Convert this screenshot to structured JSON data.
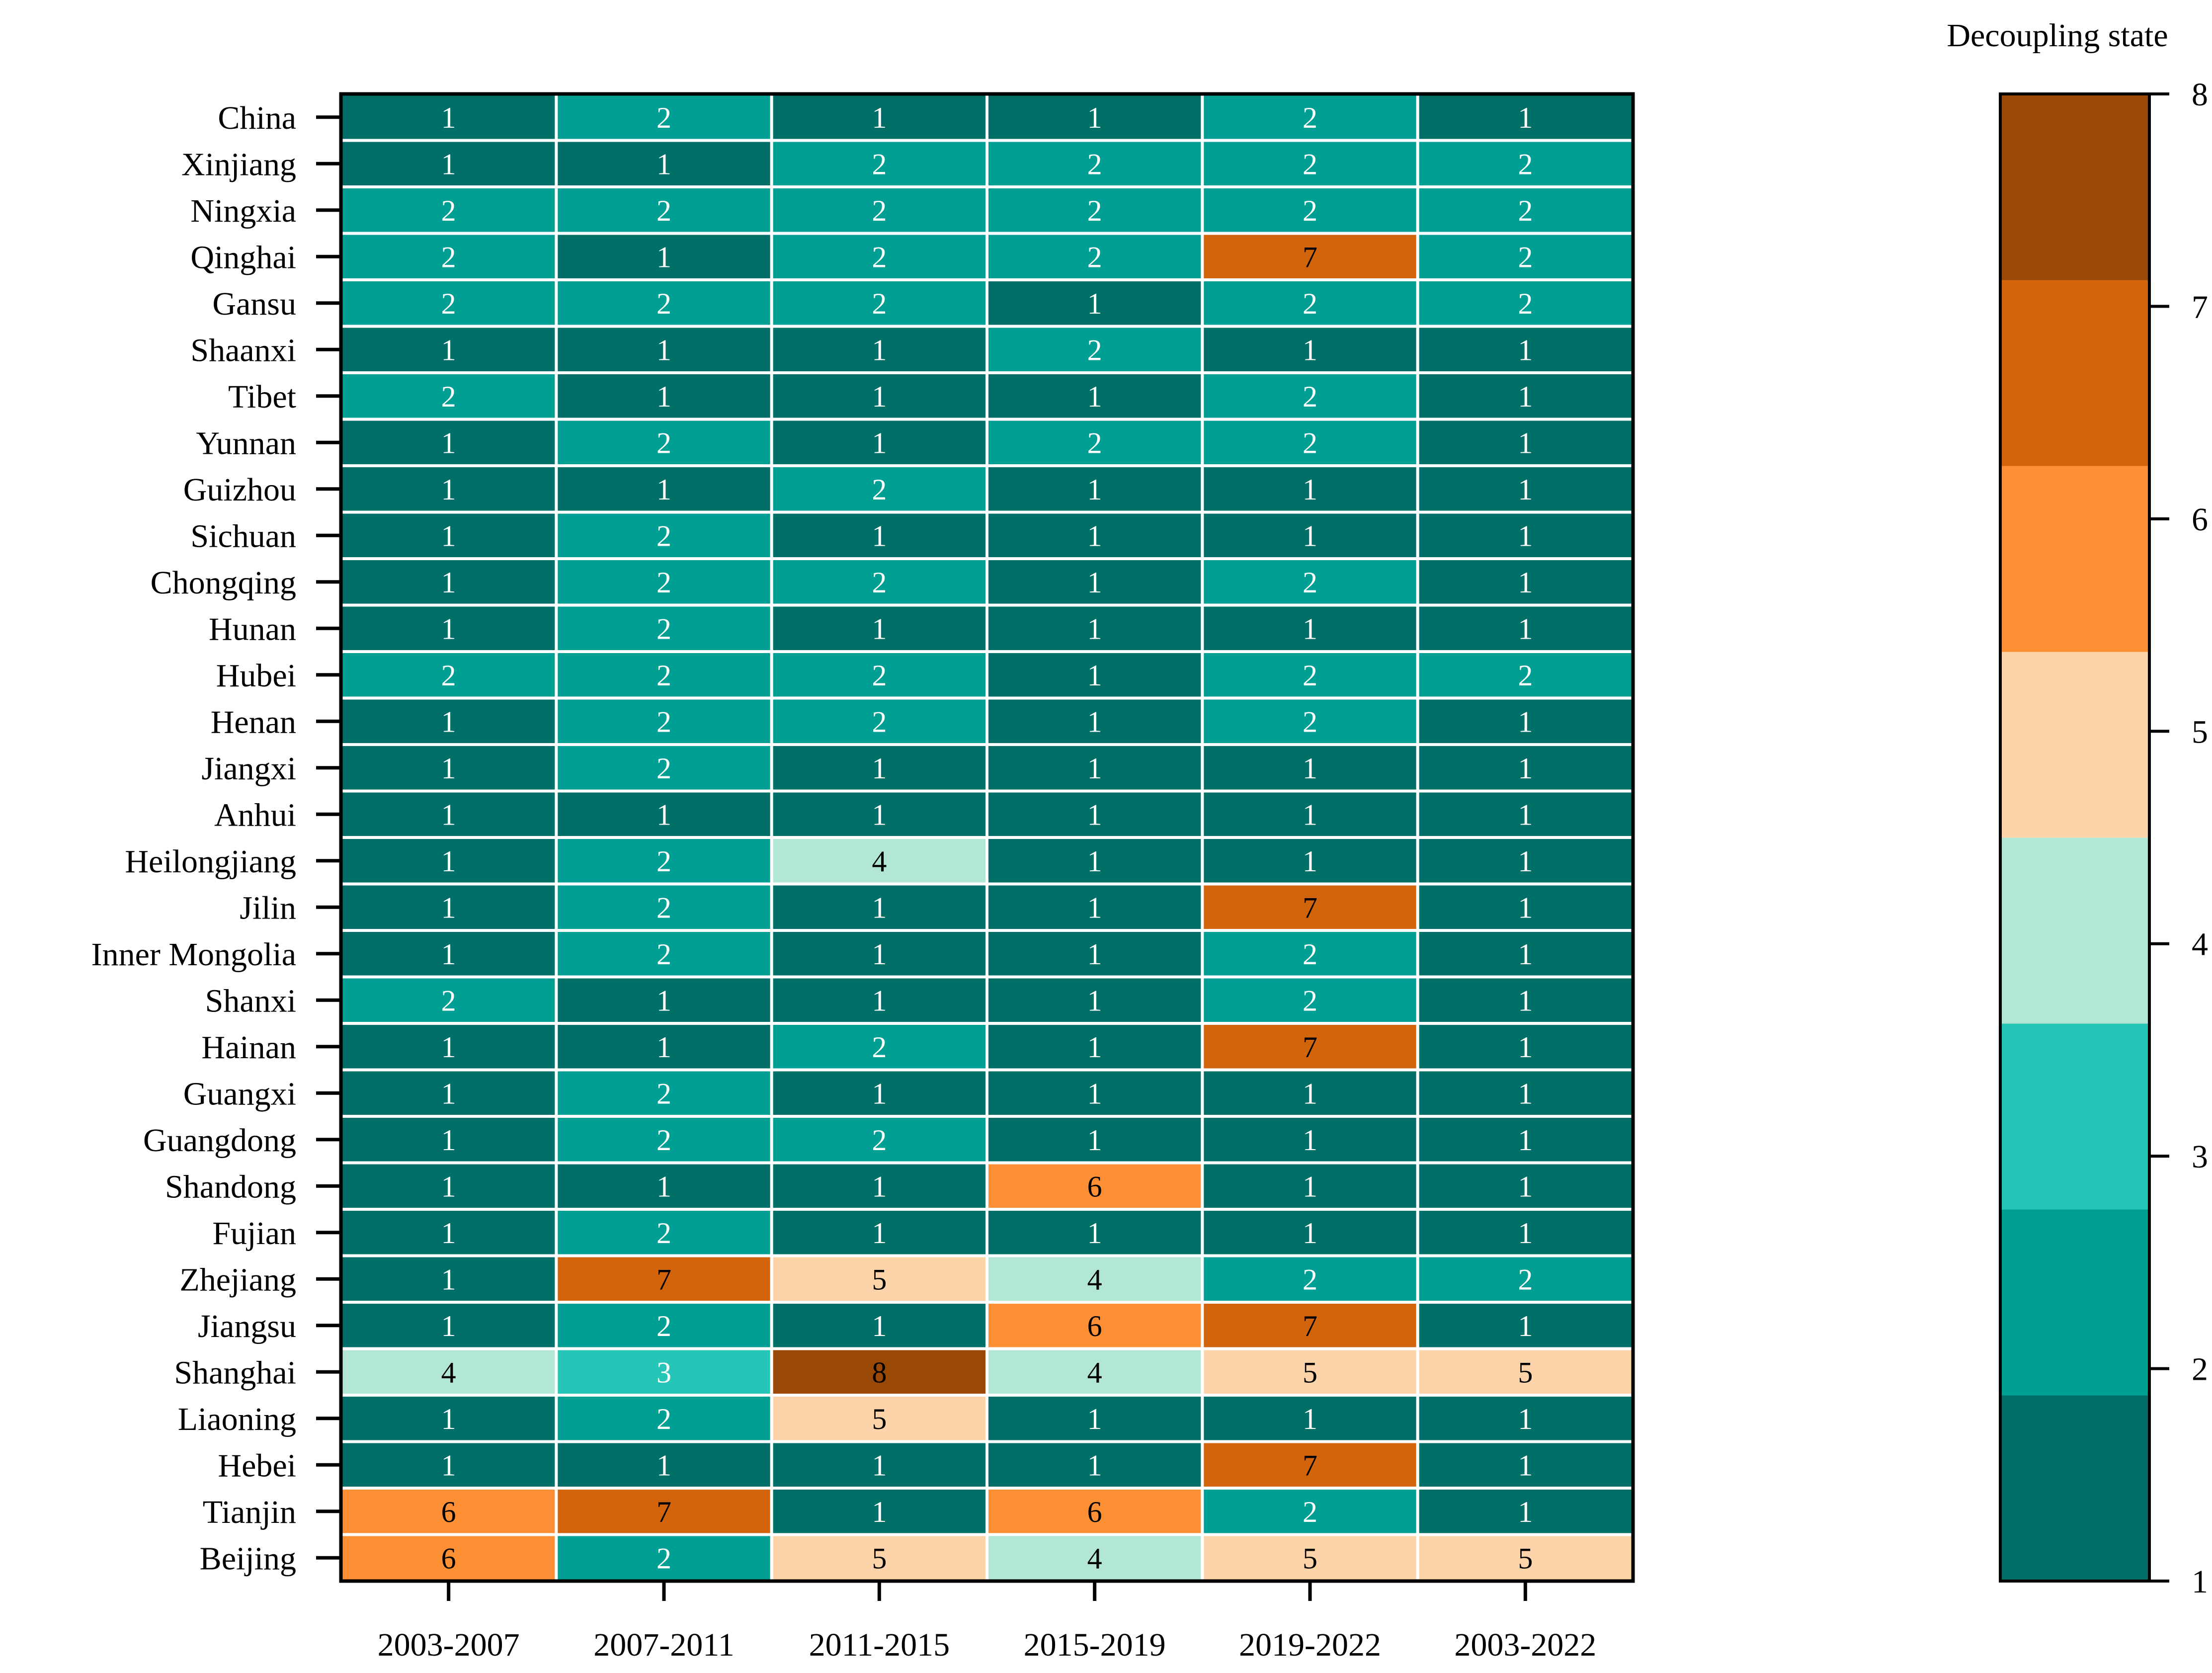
{
  "chart_data": {
    "type": "heatmap",
    "title": "",
    "colorbar_title": "Decoupling state",
    "columns": [
      "2003-2007",
      "2007-2011",
      "2011-2015",
      "2015-2019",
      "2019-2022",
      "2003-2022"
    ],
    "rows": [
      "China",
      "Xinjiang",
      "Ningxia",
      "Qinghai",
      "Gansu",
      "Shaanxi",
      "Tibet",
      "Yunnan",
      "Guizhou",
      "Sichuan",
      "Chongqing",
      "Hunan",
      "Hubei",
      "Henan",
      "Jiangxi",
      "Anhui",
      "Heilongjiang",
      "Jilin",
      "Inner Mongolia",
      "Shanxi",
      "Hainan",
      "Guangxi",
      "Guangdong",
      "Shandong",
      "Fujian",
      "Zhejiang",
      "Jiangsu",
      "Shanghai",
      "Liaoning",
      "Hebei",
      "Tianjin",
      "Beijing"
    ],
    "values": [
      [
        1,
        2,
        1,
        1,
        2,
        1
      ],
      [
        1,
        1,
        2,
        2,
        2,
        2
      ],
      [
        2,
        2,
        2,
        2,
        2,
        2
      ],
      [
        2,
        1,
        2,
        2,
        7,
        2
      ],
      [
        2,
        2,
        2,
        1,
        2,
        2
      ],
      [
        1,
        1,
        1,
        2,
        1,
        1
      ],
      [
        2,
        1,
        1,
        1,
        2,
        1
      ],
      [
        1,
        2,
        1,
        2,
        2,
        1
      ],
      [
        1,
        1,
        2,
        1,
        1,
        1
      ],
      [
        1,
        2,
        1,
        1,
        1,
        1
      ],
      [
        1,
        2,
        2,
        1,
        2,
        1
      ],
      [
        1,
        2,
        1,
        1,
        1,
        1
      ],
      [
        2,
        2,
        2,
        1,
        2,
        2
      ],
      [
        1,
        2,
        2,
        1,
        2,
        1
      ],
      [
        1,
        2,
        1,
        1,
        1,
        1
      ],
      [
        1,
        1,
        1,
        1,
        1,
        1
      ],
      [
        1,
        2,
        4,
        1,
        1,
        1
      ],
      [
        1,
        2,
        1,
        1,
        7,
        1
      ],
      [
        1,
        2,
        1,
        1,
        2,
        1
      ],
      [
        2,
        1,
        1,
        1,
        2,
        1
      ],
      [
        1,
        1,
        2,
        1,
        7,
        1
      ],
      [
        1,
        2,
        1,
        1,
        1,
        1
      ],
      [
        1,
        2,
        2,
        1,
        1,
        1
      ],
      [
        1,
        1,
        1,
        6,
        1,
        1
      ],
      [
        1,
        2,
        1,
        1,
        1,
        1
      ],
      [
        1,
        7,
        5,
        4,
        2,
        2
      ],
      [
        1,
        2,
        1,
        6,
        7,
        1
      ],
      [
        4,
        3,
        8,
        4,
        5,
        5
      ],
      [
        1,
        2,
        5,
        1,
        1,
        1
      ],
      [
        1,
        1,
        1,
        1,
        7,
        1
      ],
      [
        6,
        7,
        1,
        6,
        2,
        1
      ],
      [
        6,
        2,
        5,
        4,
        5,
        5
      ]
    ],
    "color_range": [
      1,
      8
    ],
    "colorbar_ticks": [
      "1",
      "2",
      "3",
      "4",
      "5",
      "6",
      "7",
      "8"
    ],
    "state_colors": {
      "1": "#006f67",
      "2": "#009f94",
      "3": "#25c6b7",
      "4": "#b2e6d7",
      "5": "#fdd3a9",
      "6": "#fd8f34",
      "7": "#d2640c",
      "8": "#994805"
    },
    "text_colors": {
      "dark": "#000000",
      "light": "#ffffff"
    }
  }
}
